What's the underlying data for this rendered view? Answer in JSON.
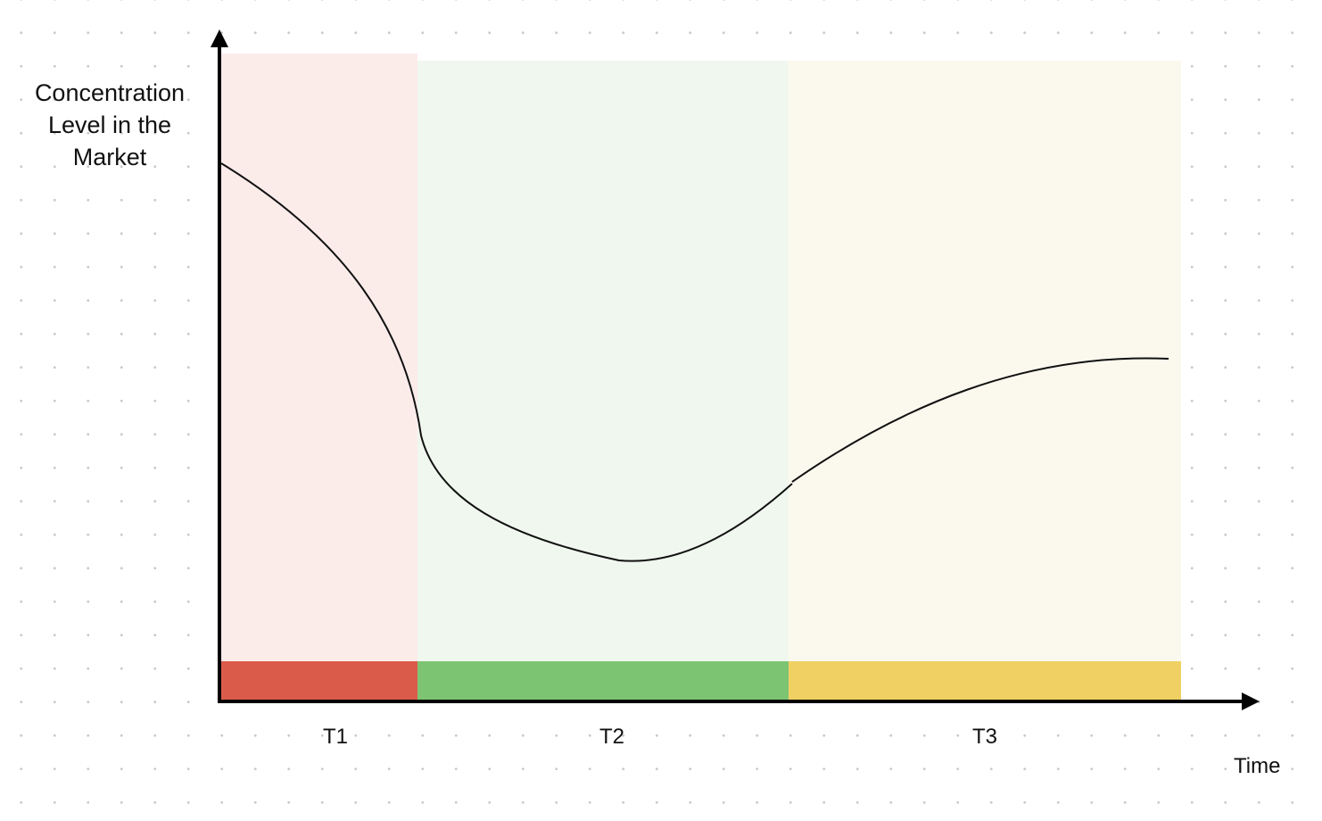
{
  "diagram": {
    "y_axis_label_lines": [
      "Concentration",
      "Level in the",
      "Market"
    ],
    "x_axis_label": "Time",
    "periods": [
      {
        "label": "T1",
        "band_color": "#db5b4a",
        "shade_color": "#fbecea"
      },
      {
        "label": "T2",
        "band_color": "#7dc472",
        "shade_color": "#f0f7ef"
      },
      {
        "label": "T3",
        "band_color": "#f0d062",
        "shade_color": "#fbf9ee"
      }
    ],
    "curve_color": "#111111",
    "axis_color": "#000000"
  }
}
